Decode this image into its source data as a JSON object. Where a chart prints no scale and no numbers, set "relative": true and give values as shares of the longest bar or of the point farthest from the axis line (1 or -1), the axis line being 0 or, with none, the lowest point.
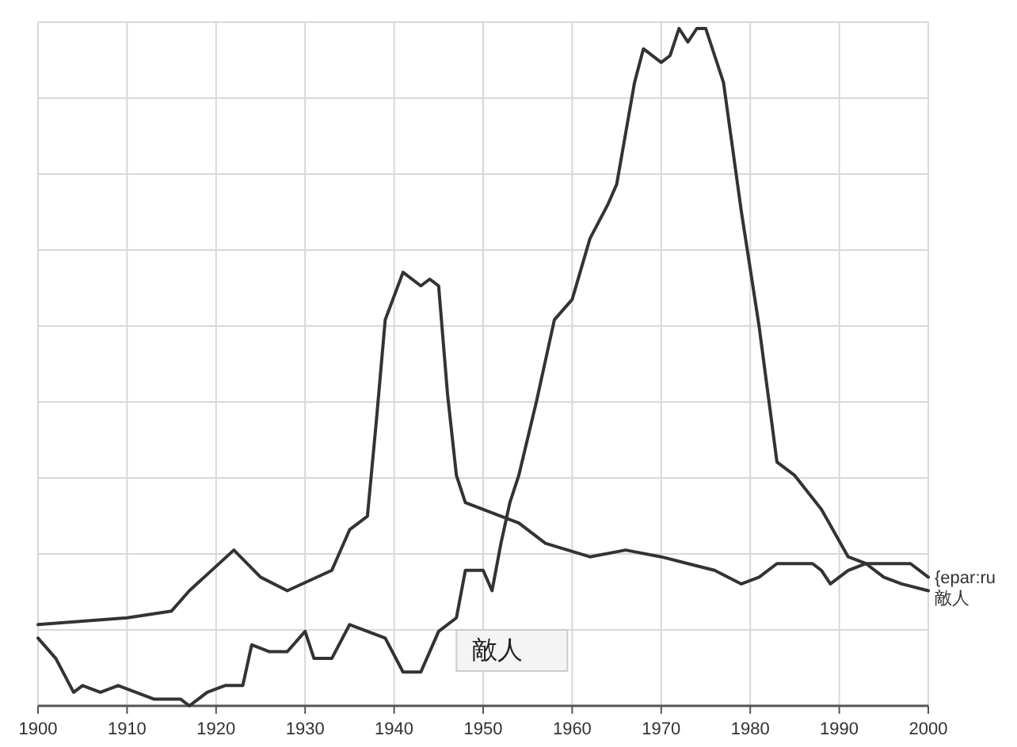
{
  "chart_data": {
    "type": "line",
    "relative": true,
    "grid": true,
    "xlim": [
      1900,
      2000
    ],
    "xticks": [
      1900,
      1910,
      1920,
      1930,
      1940,
      1950,
      1960,
      1970,
      1980,
      1990,
      2000
    ],
    "series": [
      {
        "name": "{epar:ru",
        "color": "#333333",
        "x": [
          1900,
          1910,
          1915,
          1917,
          1922,
          1925,
          1928,
          1933,
          1935,
          1937,
          1938,
          1939,
          1941,
          1943,
          1944,
          1945,
          1946,
          1947,
          1948,
          1952,
          1954,
          1957,
          1962,
          1966,
          1970,
          1973,
          1976,
          1979,
          1981,
          1983,
          1987,
          1988,
          1989,
          1991,
          1993,
          1998,
          2000
        ],
        "values": [
          0.12,
          0.13,
          0.14,
          0.17,
          0.23,
          0.19,
          0.17,
          0.2,
          0.26,
          0.28,
          0.42,
          0.57,
          0.64,
          0.62,
          0.63,
          0.62,
          0.46,
          0.34,
          0.3,
          0.28,
          0.27,
          0.24,
          0.22,
          0.23,
          0.22,
          0.21,
          0.2,
          0.18,
          0.19,
          0.21,
          0.21,
          0.2,
          0.18,
          0.2,
          0.21,
          0.21,
          0.19
        ]
      },
      {
        "name": "敵人",
        "color": "#333333",
        "x": [
          1900,
          1902,
          1904,
          1905,
          1907,
          1909,
          1911,
          1913,
          1916,
          1917,
          1919,
          1921,
          1923,
          1924,
          1926,
          1928,
          1930,
          1931,
          1933,
          1935,
          1939,
          1941,
          1943,
          1945,
          1947,
          1948,
          1950,
          1951,
          1952,
          1953,
          1954,
          1956,
          1958,
          1960,
          1962,
          1964,
          1965,
          1967,
          1968,
          1970,
          1971,
          1972,
          1973,
          1974,
          1975,
          1977,
          1979,
          1981,
          1983,
          1985,
          1988,
          1991,
          1993,
          1995,
          1997,
          2000
        ],
        "values": [
          0.1,
          0.07,
          0.02,
          0.03,
          0.02,
          0.03,
          0.02,
          0.01,
          0.01,
          0,
          0.02,
          0.03,
          0.03,
          0.09,
          0.08,
          0.08,
          0.11,
          0.07,
          0.07,
          0.12,
          0.1,
          0.05,
          0.05,
          0.11,
          0.13,
          0.2,
          0.2,
          0.17,
          0.24,
          0.3,
          0.34,
          0.45,
          0.57,
          0.6,
          0.69,
          0.74,
          0.77,
          0.92,
          0.97,
          0.95,
          0.96,
          1.0,
          0.98,
          1.0,
          1.0,
          0.92,
          0.73,
          0.56,
          0.36,
          0.34,
          0.29,
          0.22,
          0.21,
          0.19,
          0.18,
          0.17
        ]
      }
    ],
    "annotations": [
      "敵人"
    ]
  }
}
